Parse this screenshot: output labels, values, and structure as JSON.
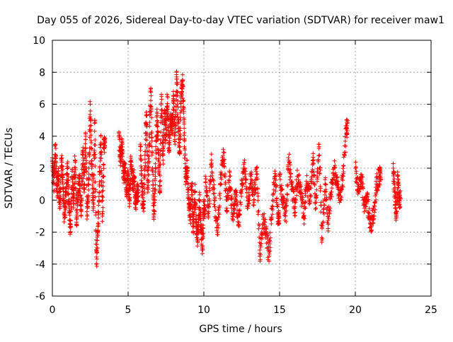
{
  "chart_data": {
    "type": "scatter",
    "title": "Day 055 of 2026, Sidereal Day-to-day VTEC variation (SDTVAR) for receiver maw1",
    "xlabel": "GPS time / hours",
    "ylabel": "SDTVAR / TECUs",
    "xlim": [
      0,
      25
    ],
    "ylim": [
      -6,
      10
    ],
    "xticks": [
      0,
      5,
      10,
      15,
      20,
      25
    ],
    "yticks": [
      -6,
      -4,
      -2,
      0,
      2,
      4,
      6,
      8,
      10
    ],
    "grid": true,
    "marker": "plus",
    "series": [
      {
        "name": "SDTVAR",
        "color": "#ff0000",
        "segments": [
          {
            "x": [
              0.0,
              0.1,
              0.2,
              0.3,
              0.4,
              0.5,
              0.6,
              0.7,
              0.8,
              0.9,
              1.0,
              1.1,
              1.2,
              1.3,
              1.4,
              1.5,
              1.6,
              1.7,
              1.8,
              1.9,
              2.0,
              2.1,
              2.2,
              2.3,
              2.4,
              2.5,
              2.6,
              2.7,
              2.8,
              2.9,
              3.0,
              3.1,
              3.2,
              3.3,
              3.4
            ],
            "y": [
              2.5,
              1.0,
              3.5,
              0.5,
              1.5,
              -0.5,
              2.5,
              1.0,
              -1.0,
              0.5,
              2.0,
              -0.5,
              -2.0,
              1.5,
              0.0,
              2.5,
              -1.5,
              0.5,
              1.5,
              -1.0,
              3.0,
              0.5,
              4.0,
              -1.0,
              1.0,
              6.0,
              2.0,
              -0.5,
              5.0,
              -4.0,
              -2.0,
              0.5,
              4.0,
              -1.0,
              3.5
            ]
          },
          {
            "x": [
              4.4,
              4.5,
              4.6,
              4.7,
              4.8,
              4.9,
              5.0,
              5.1,
              5.2,
              5.3,
              5.4,
              5.5,
              5.6
            ],
            "y": [
              4.0,
              2.5,
              3.5,
              1.5,
              2.0,
              0.5,
              1.5,
              0.0,
              2.5,
              1.0,
              1.5,
              -0.5,
              0.5
            ]
          },
          {
            "x": [
              5.8,
              5.9,
              6.0,
              6.1,
              6.2,
              6.3,
              6.4,
              6.5,
              6.6,
              6.7,
              6.8,
              6.9,
              7.0,
              7.1,
              7.2,
              7.3,
              7.4,
              7.5,
              7.6,
              7.7,
              7.8,
              7.9,
              8.0,
              8.1,
              8.2,
              8.3,
              8.4,
              8.5,
              8.6,
              8.7,
              8.8,
              8.9,
              9.0,
              9.1,
              9.2,
              9.3,
              9.4,
              9.5,
              9.6,
              9.7,
              9.8,
              9.9,
              10.0
            ],
            "y": [
              3.5,
              1.0,
              -0.5,
              2.0,
              5.5,
              0.5,
              3.5,
              7.0,
              2.0,
              -1.0,
              1.5,
              5.5,
              3.0,
              0.5,
              6.5,
              2.5,
              5.5,
              4.0,
              6.5,
              3.0,
              5.0,
              4.5,
              6.5,
              3.5,
              8.0,
              5.0,
              3.0,
              6.5,
              7.5,
              4.5,
              1.5,
              2.0,
              0.0,
              -1.0,
              1.0,
              -2.0,
              0.5,
              -1.5,
              -2.5,
              0.0,
              -1.5,
              -3.0,
              -0.5
            ]
          },
          {
            "x": [
              10.1,
              10.3,
              10.5,
              10.7,
              10.9,
              11.1,
              11.3,
              11.5,
              11.7,
              11.9,
              12.1,
              12.3,
              12.5,
              12.7,
              12.9,
              13.1,
              13.3,
              13.5,
              13.7,
              13.9,
              14.1,
              14.3,
              14.5,
              14.7,
              14.9
            ],
            "y": [
              1.5,
              -1.0,
              2.5,
              0.0,
              -2.0,
              1.0,
              3.0,
              -0.5,
              1.5,
              -1.0,
              0.5,
              -1.5,
              1.0,
              2.0,
              -0.5,
              1.5,
              0.0,
              2.0,
              -3.5,
              -1.0,
              -2.0,
              -3.5,
              -0.5,
              1.5,
              -1.0
            ]
          },
          {
            "x": [
              15.0,
              15.2,
              15.4,
              15.6,
              15.8,
              16.0,
              16.2,
              16.4,
              16.6,
              16.8,
              17.0,
              17.2,
              17.4,
              17.6,
              17.8,
              18.0,
              18.2,
              18.4,
              18.6,
              18.8,
              19.0,
              19.2,
              19.4
            ],
            "y": [
              1.5,
              0.0,
              -1.0,
              2.5,
              1.0,
              -0.5,
              1.5,
              0.5,
              -1.0,
              1.0,
              0.0,
              2.5,
              -0.5,
              3.5,
              -2.5,
              1.0,
              -1.5,
              0.5,
              2.0,
              1.0,
              0.0,
              1.5,
              4.5
            ]
          },
          {
            "x": [
              20.0,
              20.2,
              20.4,
              20.6,
              20.8,
              21.0,
              21.2,
              21.4,
              21.6
            ],
            "y": [
              2.0,
              0.5,
              1.5,
              -0.5,
              0.0,
              -1.5,
              -1.0,
              1.0,
              1.5
            ]
          },
          {
            "x": [
              22.5,
              22.6,
              22.7,
              22.8,
              22.9
            ],
            "y": [
              2.0,
              0.5,
              -1.0,
              1.5,
              0.0
            ]
          }
        ]
      }
    ]
  }
}
